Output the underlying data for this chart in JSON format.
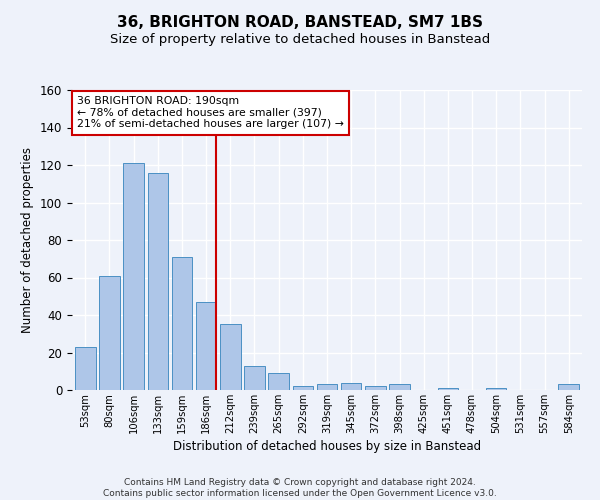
{
  "title": "36, BRIGHTON ROAD, BANSTEAD, SM7 1BS",
  "subtitle": "Size of property relative to detached houses in Banstead",
  "xlabel": "Distribution of detached houses by size in Banstead",
  "ylabel": "Number of detached properties",
  "bar_labels": [
    "53sqm",
    "80sqm",
    "106sqm",
    "133sqm",
    "159sqm",
    "186sqm",
    "212sqm",
    "239sqm",
    "265sqm",
    "292sqm",
    "319sqm",
    "345sqm",
    "372sqm",
    "398sqm",
    "425sqm",
    "451sqm",
    "478sqm",
    "504sqm",
    "531sqm",
    "557sqm",
    "584sqm"
  ],
  "bar_values": [
    23,
    61,
    121,
    116,
    71,
    47,
    35,
    13,
    9,
    2,
    3,
    4,
    2,
    3,
    0,
    1,
    0,
    1,
    0,
    0,
    3
  ],
  "bar_color": "#aec6e8",
  "bar_edge_color": "#4a90c4",
  "ylim": [
    0,
    160
  ],
  "yticks": [
    0,
    20,
    40,
    60,
    80,
    100,
    120,
    140,
    160
  ],
  "vline_color": "#cc0000",
  "annotation_box_text": "36 BRIGHTON ROAD: 190sqm\n← 78% of detached houses are smaller (397)\n21% of semi-detached houses are larger (107) →",
  "annotation_box_color": "#cc0000",
  "footer_line1": "Contains HM Land Registry data © Crown copyright and database right 2024.",
  "footer_line2": "Contains public sector information licensed under the Open Government Licence v3.0.",
  "background_color": "#eef2fa",
  "plot_background": "#eef2fa",
  "grid_color": "#ffffff",
  "title_fontsize": 11,
  "subtitle_fontsize": 9.5
}
